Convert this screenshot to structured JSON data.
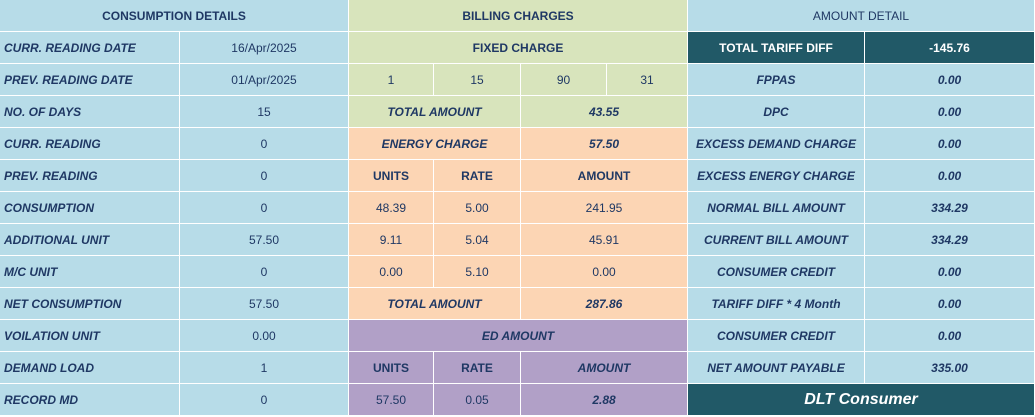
{
  "consumption": {
    "header": "CONSUMPTION DETAILS",
    "rows": [
      {
        "label": "CURR. READING DATE",
        "value": "16/Apr/2025"
      },
      {
        "label": "PREV. READING DATE",
        "value": "01/Apr/2025"
      },
      {
        "label": "NO. OF DAYS",
        "value": "15"
      },
      {
        "label": "CURR. READING",
        "value": "0"
      },
      {
        "label": "PREV. READING",
        "value": "0"
      },
      {
        "label": "CONSUMPTION",
        "value": "0"
      },
      {
        "label": "ADDITIONAL UNIT",
        "value": "57.50"
      },
      {
        "label": "M/C UNIT",
        "value": "0"
      },
      {
        "label": "NET CONSUMPTION",
        "value": "57.50"
      },
      {
        "label": "VOILATION UNIT",
        "value": "0.00"
      },
      {
        "label": "DEMAND LOAD",
        "value": "1"
      },
      {
        "label": "RECORD MD",
        "value": "0"
      }
    ]
  },
  "billing": {
    "header": "BILLING CHARGES",
    "fixed_charge_label": "FIXED CHARGE",
    "fixed_values": [
      "1",
      "15",
      "90",
      "31"
    ],
    "fixed_total_label": "TOTAL AMOUNT",
    "fixed_total_value": "43.55",
    "energy_label": "ENERGY CHARGE",
    "energy_value": "57.50",
    "energy_cols": [
      "UNITS",
      "RATE",
      "AMOUNT"
    ],
    "energy_rows": [
      [
        "48.39",
        "5.00",
        "241.95"
      ],
      [
        "9.11",
        "5.04",
        "45.91"
      ],
      [
        "0.00",
        "5.10",
        "0.00"
      ]
    ],
    "energy_total_label": "TOTAL AMOUNT",
    "energy_total_value": "287.86",
    "ed_label": "ED AMOUNT",
    "ed_cols": [
      "UNITS",
      "RATE",
      "AMOUNT"
    ],
    "ed_row": [
      "57.50",
      "0.05",
      "2.88"
    ]
  },
  "amount": {
    "header": "AMOUNT DETAIL",
    "tariff_label": "TOTAL TARIFF DIFF",
    "tariff_value": "-145.76",
    "rows": [
      {
        "label": "FPPAS",
        "value": "0.00"
      },
      {
        "label": "DPC",
        "value": "0.00"
      },
      {
        "label": "EXCESS DEMAND CHARGE",
        "value": "0.00"
      },
      {
        "label": "EXCESS ENERGY CHARGE",
        "value": "0.00"
      },
      {
        "label": "NORMAL BILL AMOUNT",
        "value": "334.29"
      },
      {
        "label": "CURRENT BILL AMOUNT",
        "value": "334.29"
      },
      {
        "label": "CONSUMER CREDIT",
        "value": "0.00"
      },
      {
        "label": "TARIFF DIFF * 4 Month",
        "value": "0.00"
      },
      {
        "label": "CONSUMER CREDIT",
        "value": "0.00"
      },
      {
        "label": "NET AMOUNT PAYABLE",
        "value": "335.00"
      }
    ],
    "footer": "DLT Consumer"
  }
}
